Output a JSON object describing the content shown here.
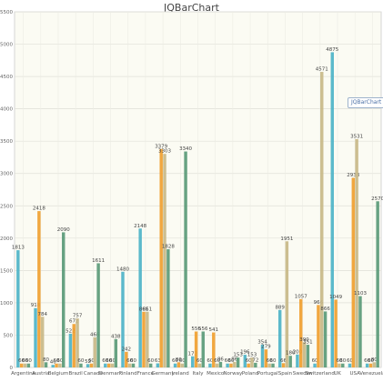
{
  "chart_data": {
    "type": "bar",
    "title": "JQBarChart",
    "tooltip": "JQBarChart",
    "ylim": [
      0,
      5500
    ],
    "yticks": [
      0,
      500,
      1000,
      1500,
      2000,
      2500,
      3000,
      3500,
      4000,
      4500,
      5000,
      5500
    ],
    "grid": true,
    "categories": [
      "Argentina",
      "Austria",
      "Belgium",
      "Brazil",
      "Canada",
      "Denmark",
      "Finland",
      "France",
      "Germany",
      "Ireland",
      "Italy",
      "Mexico",
      "Norway",
      "Poland",
      "Portugal",
      "Spain",
      "Sweden",
      "Switzerland",
      "UK",
      "USA",
      "Venezuela"
    ],
    "series": [
      {
        "color": "#4db3c8",
        "values": [
          1813,
          918,
          40,
          522,
          52,
          60,
          1480,
          2148,
          63,
          60,
          172,
          60,
          60,
          196,
          354,
          889,
          200,
          60,
          4875,
          60,
          60
        ]
      },
      {
        "color": "#f0a030",
        "values": [
          60,
          2418,
          60,
          672,
          60,
          60,
          242,
          861,
          3379,
          80,
          556,
          541,
          60,
          60,
          279,
          66,
          1057,
          966,
          1049,
          2933,
          60
        ]
      },
      {
        "color": "#c8b888",
        "values": [
          60,
          784,
          60,
          757,
          466,
          60,
          60,
          861,
          3303,
          60,
          60,
          60,
          86,
          153,
          60,
          1951,
          390,
          4571,
          60,
          3531,
          80
        ]
      },
      {
        "color": "#5a9a78",
        "values": [
          60,
          80,
          2090,
          60,
          1611,
          438,
          60,
          60,
          1828,
          3340,
          556,
          86,
          153,
          72,
          60,
          180,
          351,
          866,
          60,
          1103,
          2570
        ]
      }
    ]
  }
}
